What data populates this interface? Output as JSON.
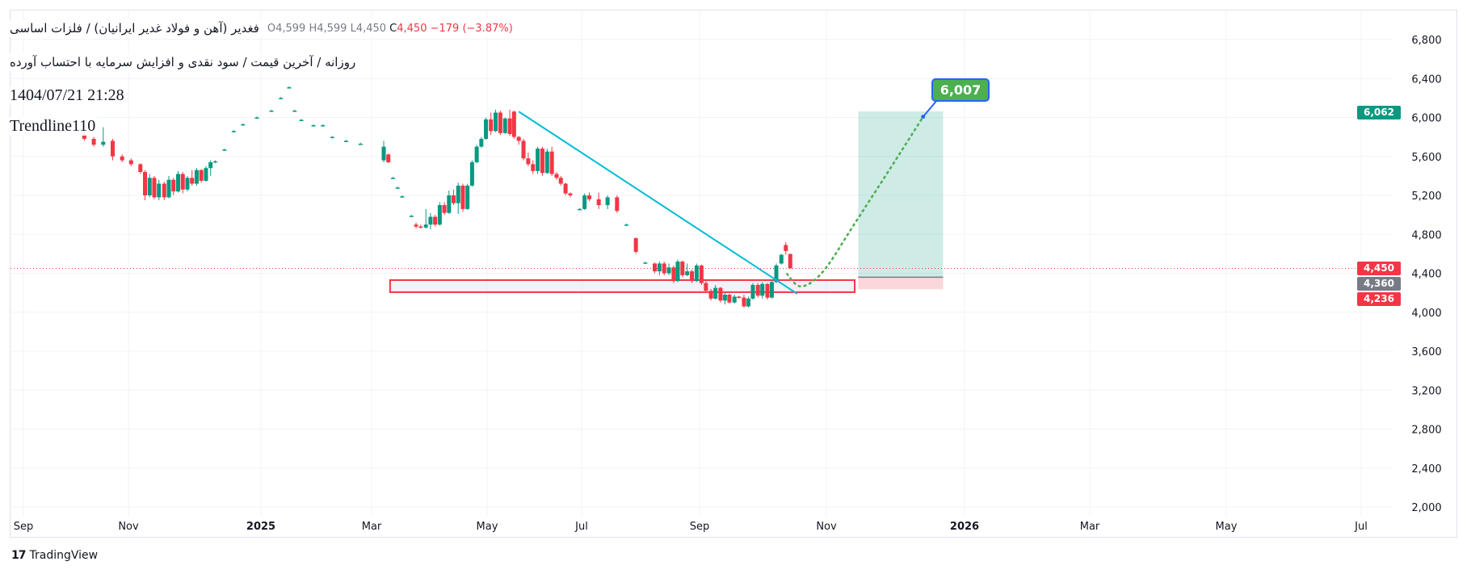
{
  "legend": {
    "symbol_title": "فغدیر (آهن و فولاد غدیر ایرانیان) / فلزات اساسی",
    "subtitle": "روزانه / آخرین قیمت / سود نقدی و افزایش سرمایه با احتساب آورده",
    "datetime": "1404/07/21 21:28",
    "author": "Trendline110",
    "ohlc_hidden": "O4,599 H4,599 L4,450",
    "close_prefix": "C",
    "close": "4,450",
    "change": "−179 (−3.87%)"
  },
  "price_labels": {
    "target": "6,062",
    "last": "4,450",
    "entry": "4,360",
    "stop": "4,236"
  },
  "annotation": {
    "target_label": "6,007"
  },
  "branding": {
    "name": "TradingView",
    "logo": "17"
  },
  "colors": {
    "up": "#089981",
    "down": "#f23645",
    "trendline": "#00bcd4",
    "projection": "#4caf50",
    "entry": "#787b86"
  },
  "chart_data": {
    "type": "candlestick",
    "title": "فغدیر",
    "ylim": [
      2000,
      6800
    ],
    "y_ticks": [
      "6,800",
      "6,400",
      "6,000",
      "5,600",
      "5,200",
      "4,800",
      "4,400",
      "4,000",
      "3,600",
      "3,200",
      "2,800",
      "2,400",
      "2,000"
    ],
    "y_tick_values": [
      6800,
      6400,
      6000,
      5600,
      5200,
      4800,
      4400,
      4000,
      3600,
      3200,
      2800,
      2400,
      2000
    ],
    "x_ticks": [
      {
        "label": "Sep",
        "m": 0
      },
      {
        "label": "Nov",
        "m": 2
      },
      {
        "label": "2025",
        "m": 4,
        "bold": true
      },
      {
        "label": "Mar",
        "m": 6
      },
      {
        "label": "May",
        "m": 8
      },
      {
        "label": "Jul",
        "m": 10
      },
      {
        "label": "Sep",
        "m": 12
      },
      {
        "label": "Nov",
        "m": 14
      },
      {
        "label": "2026",
        "m": 16,
        "bold": true
      },
      {
        "label": "Mar",
        "m": 18
      },
      {
        "label": "May",
        "m": 20
      },
      {
        "label": "Jul",
        "m": 22
      }
    ],
    "x_unit": "months since Sep 2024",
    "candles_format": [
      "m",
      "open",
      "high",
      "low",
      "close"
    ],
    "candles": [
      [
        1.16,
        5820,
        5850,
        5760,
        5780
      ],
      [
        1.34,
        5780,
        5800,
        5700,
        5720
      ],
      [
        1.52,
        5720,
        5900,
        5700,
        5750
      ],
      [
        1.7,
        5760,
        5780,
        5560,
        5600
      ],
      [
        1.88,
        5600,
        5620,
        5540,
        5560
      ],
      [
        2.04,
        5560,
        5580,
        5500,
        5520
      ],
      [
        2.18,
        5520,
        5530,
        5420,
        5440
      ],
      [
        2.25,
        5440,
        5460,
        5150,
        5200
      ],
      [
        2.32,
        5200,
        5420,
        5180,
        5380
      ],
      [
        2.39,
        5380,
        5400,
        5160,
        5180
      ],
      [
        2.46,
        5180,
        5360,
        5150,
        5320
      ],
      [
        2.54,
        5320,
        5340,
        5150,
        5180
      ],
      [
        2.61,
        5180,
        5400,
        5170,
        5360
      ],
      [
        2.68,
        5360,
        5380,
        5200,
        5240
      ],
      [
        2.75,
        5240,
        5450,
        5230,
        5420
      ],
      [
        2.82,
        5420,
        5440,
        5220,
        5260
      ],
      [
        2.89,
        5260,
        5400,
        5240,
        5380
      ],
      [
        2.96,
        5380,
        5460,
        5300,
        5320
      ],
      [
        3.03,
        5320,
        5480,
        5300,
        5460
      ],
      [
        3.1,
        5460,
        5470,
        5330,
        5350
      ],
      [
        3.17,
        5350,
        5500,
        5340,
        5480
      ],
      [
        3.24,
        5480,
        5560,
        5400,
        5540
      ],
      [
        3.31,
        5540,
        5560,
        5530,
        5550
      ],
      [
        3.45,
        5670,
        5680,
        5660,
        5670
      ],
      [
        3.59,
        5860,
        5870,
        5850,
        5860
      ],
      [
        3.73,
        5930,
        5940,
        5920,
        5930
      ],
      [
        3.94,
        6000,
        6010,
        5990,
        6000
      ],
      [
        4.19,
        6070,
        6080,
        6060,
        6070
      ],
      [
        4.36,
        6200,
        6210,
        6190,
        6200
      ],
      [
        4.51,
        6310,
        6320,
        6300,
        6310
      ],
      [
        4.61,
        6070,
        6080,
        6060,
        6070
      ],
      [
        4.73,
        5975,
        5985,
        5965,
        5975
      ],
      [
        4.95,
        5920,
        5930,
        5910,
        5920
      ],
      [
        5.12,
        5920,
        5930,
        5910,
        5920
      ],
      [
        5.29,
        5800,
        5810,
        5790,
        5800
      ],
      [
        5.54,
        5760,
        5770,
        5750,
        5760
      ],
      [
        5.8,
        5730,
        5740,
        5720,
        5730
      ],
      [
        6.21,
        5560,
        5760,
        5540,
        5700
      ],
      [
        6.29,
        5620,
        5630,
        5530,
        5540
      ],
      [
        6.37,
        5380,
        5390,
        5370,
        5380
      ],
      [
        6.45,
        5280,
        5290,
        5270,
        5280
      ],
      [
        6.53,
        5190,
        5200,
        5180,
        5190
      ],
      [
        6.69,
        4990,
        5000,
        4980,
        4990
      ],
      [
        6.77,
        4900,
        4920,
        4860,
        4880
      ],
      [
        6.85,
        4880,
        4900,
        4860,
        4870
      ],
      [
        6.94,
        4870,
        5060,
        4860,
        4900
      ],
      [
        7.02,
        4900,
        5020,
        4850,
        4980
      ],
      [
        7.1,
        4980,
        5000,
        4880,
        4900
      ],
      [
        7.18,
        4900,
        5130,
        4890,
        5100
      ],
      [
        7.26,
        5100,
        5130,
        5000,
        5020
      ],
      [
        7.34,
        5020,
        5250,
        5010,
        5200
      ],
      [
        7.42,
        5200,
        5260,
        5100,
        5120
      ],
      [
        7.5,
        5120,
        5330,
        5010,
        5300
      ],
      [
        7.58,
        5300,
        5320,
        5030,
        5060
      ],
      [
        7.66,
        5060,
        5320,
        5050,
        5300
      ],
      [
        7.74,
        5300,
        5560,
        5290,
        5540
      ],
      [
        7.82,
        5540,
        5720,
        5530,
        5700
      ],
      [
        7.9,
        5700,
        5800,
        5690,
        5780
      ],
      [
        7.98,
        5780,
        6000,
        5770,
        5980
      ],
      [
        8.08,
        5980,
        6050,
        5820,
        5860
      ],
      [
        8.18,
        5860,
        6080,
        5850,
        6050
      ],
      [
        8.28,
        6050,
        6070,
        5820,
        5840
      ],
      [
        8.38,
        5840,
        6000,
        5830,
        5990
      ],
      [
        8.48,
        5990,
        6080,
        5810,
        5830
      ],
      [
        8.57,
        6060,
        6070,
        5780,
        5800
      ],
      [
        8.67,
        5800,
        5810,
        5720,
        5760
      ],
      [
        8.77,
        5760,
        5780,
        5560,
        5580
      ],
      [
        8.87,
        5580,
        5640,
        5500,
        5520
      ],
      [
        8.97,
        5520,
        5560,
        5420,
        5450
      ],
      [
        9.07,
        5450,
        5700,
        5420,
        5680
      ],
      [
        9.17,
        5680,
        5700,
        5400,
        5430
      ],
      [
        9.27,
        5430,
        5680,
        5420,
        5650
      ],
      [
        9.37,
        5650,
        5700,
        5400,
        5420
      ],
      [
        9.47,
        5420,
        5440,
        5360,
        5380
      ],
      [
        9.56,
        5380,
        5400,
        5300,
        5320
      ],
      [
        9.66,
        5320,
        5330,
        5200,
        5220
      ],
      [
        9.76,
        5220,
        5230,
        5180,
        5200
      ],
      [
        9.96,
        5060,
        5070,
        5050,
        5060
      ],
      [
        10.05,
        5060,
        5220,
        5050,
        5200
      ],
      [
        10.13,
        5200,
        5230,
        5140,
        5160
      ],
      [
        10.29,
        5160,
        5230,
        5060,
        5100
      ],
      [
        10.44,
        5100,
        5200,
        5060,
        5180
      ],
      [
        10.6,
        5180,
        5200,
        5020,
        5040
      ],
      [
        10.76,
        4900,
        4910,
        4890,
        4900
      ],
      [
        10.92,
        4760,
        4770,
        4600,
        4620
      ],
      [
        11.08,
        4510,
        4520,
        4500,
        4510
      ],
      [
        11.24,
        4500,
        4510,
        4400,
        4420
      ],
      [
        11.32,
        4420,
        4520,
        4380,
        4500
      ],
      [
        11.4,
        4500,
        4520,
        4380,
        4400
      ],
      [
        11.48,
        4400,
        4500,
        4380,
        4460
      ],
      [
        11.56,
        4460,
        4480,
        4300,
        4320
      ],
      [
        11.63,
        4320,
        4540,
        4310,
        4520
      ],
      [
        11.71,
        4520,
        4530,
        4360,
        4380
      ],
      [
        11.79,
        4380,
        4500,
        4370,
        4420
      ],
      [
        11.87,
        4420,
        4440,
        4300,
        4320
      ],
      [
        11.95,
        4320,
        4500,
        4310,
        4480
      ],
      [
        12.03,
        4480,
        4490,
        4280,
        4300
      ],
      [
        12.1,
        4300,
        4320,
        4200,
        4220
      ],
      [
        12.18,
        4220,
        4240,
        4120,
        4140
      ],
      [
        12.25,
        4140,
        4280,
        4130,
        4250
      ],
      [
        12.33,
        4250,
        4260,
        4100,
        4120
      ],
      [
        12.4,
        4120,
        4200,
        4080,
        4180
      ],
      [
        12.47,
        4180,
        4190,
        4090,
        4100
      ],
      [
        12.55,
        4100,
        4180,
        4090,
        4160
      ],
      [
        12.62,
        4160,
        4170,
        4140,
        4150
      ],
      [
        12.7,
        4150,
        4180,
        4050,
        4060
      ],
      [
        12.77,
        4060,
        4160,
        4050,
        4140
      ],
      [
        12.84,
        4140,
        4300,
        4130,
        4280
      ],
      [
        12.92,
        4280,
        4300,
        4150,
        4170
      ],
      [
        12.99,
        4170,
        4310,
        4140,
        4290
      ],
      [
        13.07,
        4290,
        4300,
        4130,
        4150
      ],
      [
        13.14,
        4150,
        4330,
        4140,
        4310
      ],
      [
        13.21,
        4310,
        4500,
        4300,
        4480
      ],
      [
        13.29,
        4500,
        4600,
        4490,
        4590
      ],
      [
        13.36,
        4690,
        4720,
        4590,
        4629
      ],
      [
        13.43,
        4599,
        4599,
        4450,
        4450
      ]
    ],
    "last_price": 4450,
    "trendline": [
      [
        8.67,
        6060
      ],
      [
        13.54,
        4189
      ]
    ],
    "support_zone": {
      "m": [
        6.32,
        14.41
      ],
      "price": [
        4206,
        4330
      ]
    },
    "position": {
      "m": [
        14.46,
        15.69
      ],
      "target": 6062,
      "entry": 4360,
      "stop": 4236
    },
    "projection_path": [
      [
        13.37,
        4400
      ],
      [
        13.6,
        4265
      ],
      [
        13.95,
        4420
      ],
      [
        14.4,
        4900
      ],
      [
        15.0,
        5560
      ],
      [
        15.4,
        6007
      ]
    ]
  }
}
